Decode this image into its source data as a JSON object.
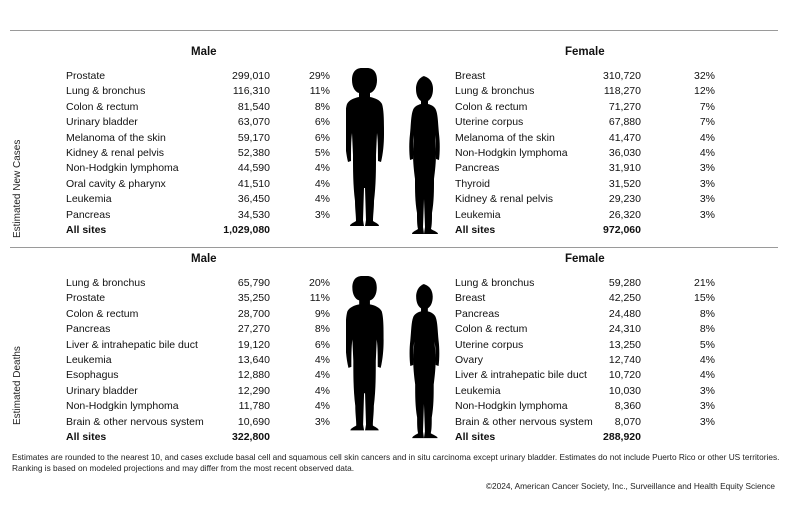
{
  "sections": [
    {
      "label": "Estimated New Cases",
      "male": {
        "header": "Male",
        "rows": [
          {
            "site": "Prostate",
            "count": "299,010",
            "pct": "29%"
          },
          {
            "site": "Lung & bronchus",
            "count": "116,310",
            "pct": "11%"
          },
          {
            "site": "Colon & rectum",
            "count": "81,540",
            "pct": "8%"
          },
          {
            "site": "Urinary bladder",
            "count": "63,070",
            "pct": "6%"
          },
          {
            "site": "Melanoma of the skin",
            "count": "59,170",
            "pct": "6%"
          },
          {
            "site": "Kidney & renal pelvis",
            "count": "52,380",
            "pct": "5%"
          },
          {
            "site": "Non-Hodgkin lymphoma",
            "count": "44,590",
            "pct": "4%"
          },
          {
            "site": "Oral cavity & pharynx",
            "count": "41,510",
            "pct": "4%"
          },
          {
            "site": "Leukemia",
            "count": "36,450",
            "pct": "4%"
          },
          {
            "site": "Pancreas",
            "count": "34,530",
            "pct": "3%"
          }
        ],
        "total": {
          "site": "All sites",
          "count": "1,029,080"
        }
      },
      "female": {
        "header": "Female",
        "rows": [
          {
            "site": "Breast",
            "count": "310,720",
            "pct": "32%"
          },
          {
            "site": "Lung & bronchus",
            "count": "118,270",
            "pct": "12%"
          },
          {
            "site": "Colon & rectum",
            "count": "71,270",
            "pct": "7%"
          },
          {
            "site": "Uterine corpus",
            "count": "67,880",
            "pct": "7%"
          },
          {
            "site": "Melanoma of the skin",
            "count": "41,470",
            "pct": "4%"
          },
          {
            "site": "Non-Hodgkin lymphoma",
            "count": "36,030",
            "pct": "4%"
          },
          {
            "site": "Pancreas",
            "count": "31,910",
            "pct": "3%"
          },
          {
            "site": "Thyroid",
            "count": "31,520",
            "pct": "3%"
          },
          {
            "site": "Kidney & renal pelvis",
            "count": "29,230",
            "pct": "3%"
          },
          {
            "site": "Leukemia",
            "count": "26,320",
            "pct": "3%"
          }
        ],
        "total": {
          "site": "All sites",
          "count": "972,060"
        }
      }
    },
    {
      "label": "Estimated Deaths",
      "male": {
        "header": "Male",
        "rows": [
          {
            "site": "Lung & bronchus",
            "count": "65,790",
            "pct": "20%"
          },
          {
            "site": "Prostate",
            "count": "35,250",
            "pct": "11%"
          },
          {
            "site": "Colon & rectum",
            "count": "28,700",
            "pct": "9%"
          },
          {
            "site": "Pancreas",
            "count": "27,270",
            "pct": "8%"
          },
          {
            "site": "Liver & intrahepatic bile duct",
            "count": "19,120",
            "pct": "6%"
          },
          {
            "site": "Leukemia",
            "count": "13,640",
            "pct": "4%"
          },
          {
            "site": "Esophagus",
            "count": "12,880",
            "pct": "4%"
          },
          {
            "site": "Urinary bladder",
            "count": "12,290",
            "pct": "4%"
          },
          {
            "site": "Non-Hodgkin lymphoma",
            "count": "11,780",
            "pct": "4%"
          },
          {
            "site": "Brain & other nervous system",
            "count": "10,690",
            "pct": "3%"
          }
        ],
        "total": {
          "site": "All sites",
          "count": "322,800"
        }
      },
      "female": {
        "header": "Female",
        "rows": [
          {
            "site": "Lung & bronchus",
            "count": "59,280",
            "pct": "21%"
          },
          {
            "site": "Breast",
            "count": "42,250",
            "pct": "15%"
          },
          {
            "site": "Pancreas",
            "count": "24,480",
            "pct": "8%"
          },
          {
            "site": "Colon & rectum",
            "count": "24,310",
            "pct": "8%"
          },
          {
            "site": "Uterine corpus",
            "count": "13,250",
            "pct": "5%"
          },
          {
            "site": "Ovary",
            "count": "12,740",
            "pct": "4%"
          },
          {
            "site": "Liver & intrahepatic bile duct",
            "count": "10,720",
            "pct": "4%"
          },
          {
            "site": "Leukemia",
            "count": "10,030",
            "pct": "3%"
          },
          {
            "site": "Non-Hodgkin lymphoma",
            "count": "8,360",
            "pct": "3%"
          },
          {
            "site": "Brain & other nervous system",
            "count": "8,070",
            "pct": "3%"
          }
        ],
        "total": {
          "site": "All sites",
          "count": "288,920"
        }
      }
    }
  ],
  "footnote": "Estimates are rounded to the nearest 10, and cases exclude basal cell and squamous cell skin cancers and in situ carcinoma except urinary bladder. Estimates do not include Puerto Rico or other US territories. Ranking is based on modeled projections and may differ from the most recent observed data.",
  "credit": "©2024, American Cancer Society, Inc., Surveillance and Health Equity Science",
  "icons": {
    "male": "male-silhouette-icon",
    "female": "female-silhouette-icon"
  }
}
